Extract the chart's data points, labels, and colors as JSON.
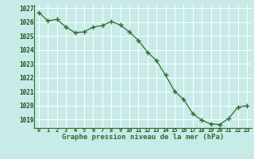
{
  "x": [
    0,
    1,
    2,
    3,
    4,
    5,
    6,
    7,
    8,
    9,
    10,
    11,
    12,
    13,
    14,
    15,
    16,
    17,
    18,
    19,
    20,
    21,
    22,
    23
  ],
  "y": [
    1026.7,
    1026.1,
    1026.2,
    1025.65,
    1025.25,
    1025.3,
    1025.65,
    1025.75,
    1026.05,
    1025.8,
    1025.3,
    1024.7,
    1023.85,
    1023.25,
    1022.2,
    1021.05,
    1020.45,
    1019.45,
    1018.95,
    1018.7,
    1018.65,
    1019.1,
    1019.9,
    1020.0
  ],
  "xlabel": "Graphe pression niveau de la mer (hPa)",
  "ylim": [
    1018.4,
    1027.25
  ],
  "yticks": [
    1019,
    1020,
    1021,
    1022,
    1023,
    1024,
    1025,
    1026,
    1027
  ],
  "xlim": [
    -0.5,
    23.5
  ],
  "xticks": [
    0,
    1,
    2,
    3,
    4,
    5,
    6,
    7,
    8,
    9,
    10,
    11,
    12,
    13,
    14,
    15,
    16,
    17,
    18,
    19,
    20,
    21,
    22,
    23
  ],
  "line_color": "#2d6e2d",
  "marker_color": "#2d6e2d",
  "bg_color": "#c8ebe8",
  "grid_color": "#b8dbd8",
  "xlabel_color": "#1a4f1a",
  "tick_color": "#1a4f1a",
  "bottom_label_color": "#2d6e2d"
}
